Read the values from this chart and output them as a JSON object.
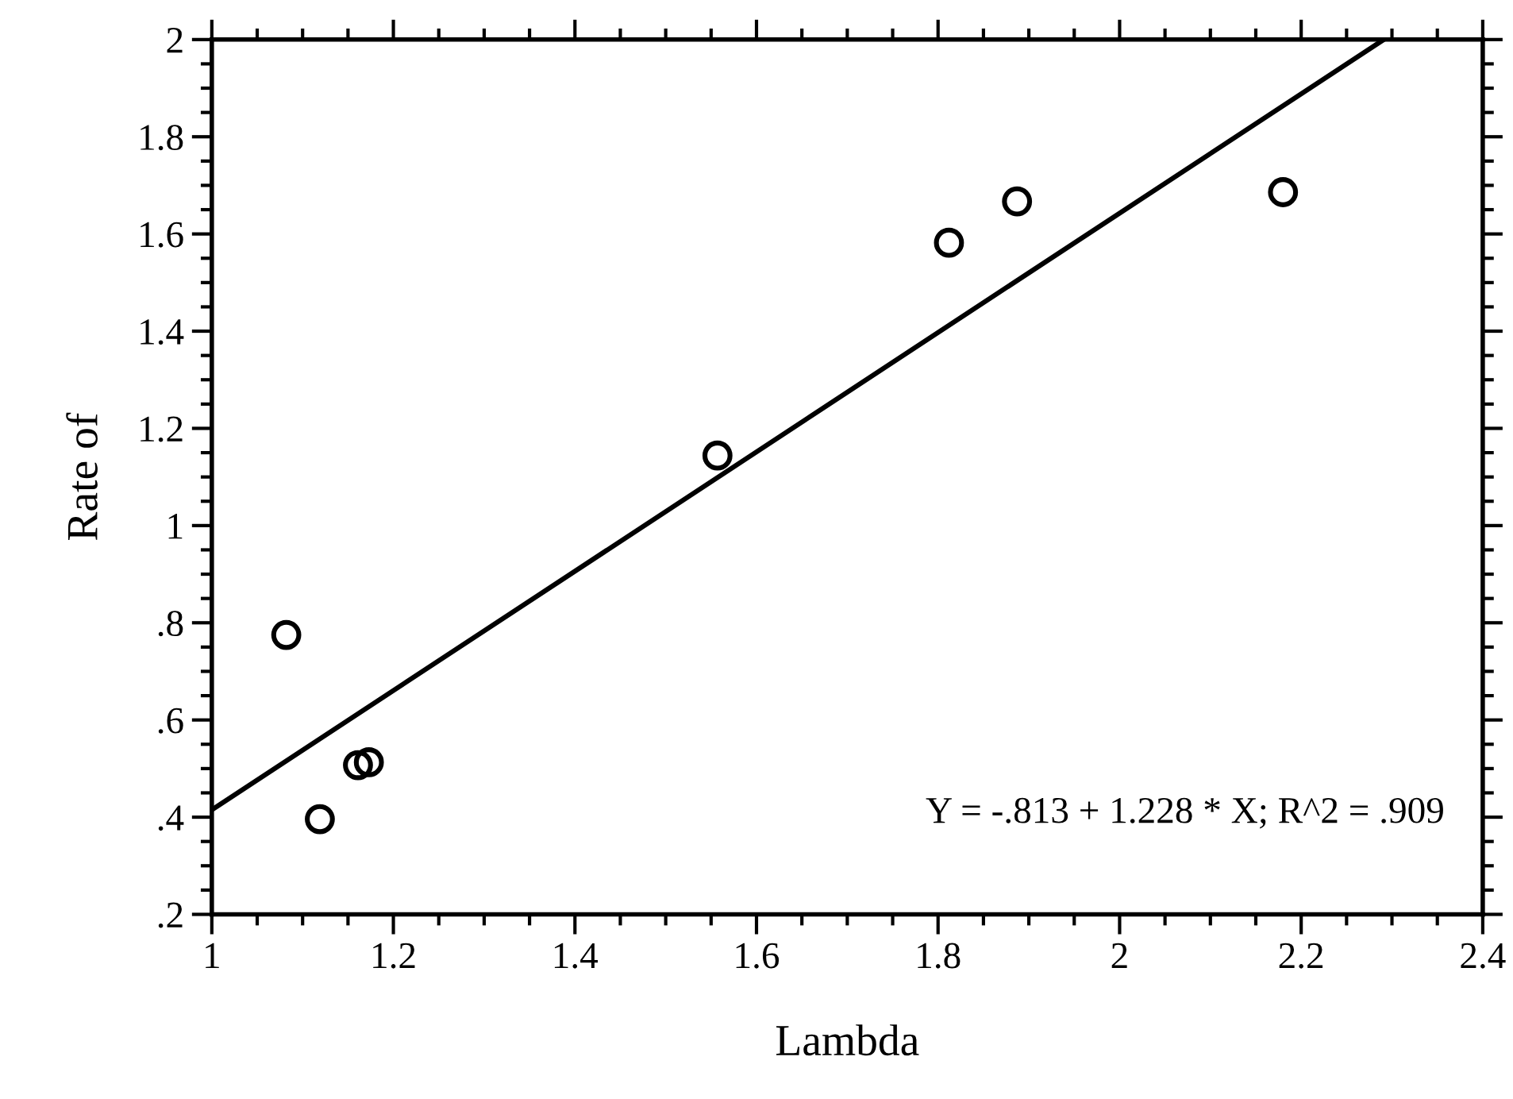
{
  "chart_data": {
    "type": "scatter",
    "xlabel": "Lambda",
    "ylabel": "Rate of",
    "series": [
      {
        "color": "#000000",
        "marker": "circle",
        "x": [
          1.082,
          1.119,
          1.161,
          1.173,
          1.557,
          1.812,
          1.887,
          2.18
        ],
        "values": [
          0.775,
          0.396,
          0.507,
          0.513,
          1.144,
          1.582,
          1.667,
          1.686
        ]
      },
      {
        "type": "line",
        "color": "#000000",
        "marker": "none",
        "line_style": "solid",
        "x": [
          1,
          2.291
        ],
        "values": [
          0.415,
          2.0
        ]
      }
    ],
    "xlim": [
      1,
      2.4
    ],
    "xticks": [
      1,
      1.2,
      1.4,
      1.6,
      1.8,
      2,
      2.2,
      2.4
    ],
    "ylim": [
      0.2,
      2
    ],
    "yticks": [
      {
        "value": 0.2,
        "label": ".2"
      },
      {
        "value": 0.4,
        "label": ".4"
      },
      {
        "value": 0.6,
        "label": ".6"
      },
      {
        "value": 0.8,
        "label": ".8"
      },
      1,
      1.2,
      1.4,
      1.6,
      1.8,
      2
    ],
    "grid": false,
    "annotations": [
      "Y = -.813 + 1.228 * X; R^2 = .909"
    ]
  }
}
